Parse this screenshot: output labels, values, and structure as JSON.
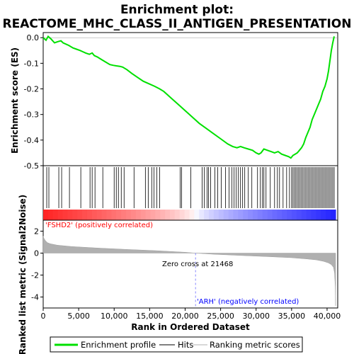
{
  "chart_data": [
    {
      "type": "line",
      "title": "Enrichment plot:",
      "subtitle": "REACTOME_MHC_CLASS_II_ANTIGEN_PRESENTATION",
      "ylabel": "Enrichment score (ES)",
      "xlim": [
        0,
        41500
      ],
      "ylim": [
        -0.5,
        0.02
      ],
      "yticks": [
        0.0,
        -0.1,
        -0.2,
        -0.3,
        -0.4,
        -0.5
      ],
      "yticklabels": [
        "0.0",
        "-0.1",
        "-0.2",
        "-0.3",
        "-0.4",
        "-0.5"
      ],
      "series": [
        {
          "name": "Enrichment profile",
          "color": "#00e000",
          "x": [
            0,
            400,
            700,
            1100,
            1600,
            2100,
            2500,
            2800,
            3200,
            3600,
            4200,
            4700,
            5200,
            5600,
            6000,
            6500,
            6900,
            7200,
            7600,
            8200,
            8800,
            9400,
            9900,
            10300,
            10800,
            11200,
            11800,
            12500,
            13300,
            14100,
            14900,
            15700,
            16400,
            17000,
            18000,
            19000,
            20000,
            21000,
            22000,
            23000,
            24000,
            25000,
            26000,
            26700,
            27300,
            27800,
            28300,
            28900,
            29500,
            30000,
            30400,
            30700,
            31100,
            31600,
            32100,
            32600,
            33100,
            33600,
            34100,
            34600,
            34900,
            35200,
            35500,
            35800,
            36100,
            36400,
            36700,
            37000,
            37300,
            37600,
            37900,
            38200,
            38500,
            38800,
            39100,
            39400,
            39700,
            40000,
            40200,
            40400,
            40600,
            40800,
            41000
          ],
          "y": [
            0.0,
            -0.01,
            0.005,
            -0.005,
            -0.02,
            -0.015,
            -0.012,
            -0.02,
            -0.025,
            -0.03,
            -0.04,
            -0.045,
            -0.05,
            -0.055,
            -0.06,
            -0.065,
            -0.06,
            -0.07,
            -0.075,
            -0.085,
            -0.095,
            -0.105,
            -0.108,
            -0.11,
            -0.112,
            -0.115,
            -0.125,
            -0.14,
            -0.155,
            -0.17,
            -0.18,
            -0.19,
            -0.2,
            -0.21,
            -0.235,
            -0.26,
            -0.285,
            -0.31,
            -0.335,
            -0.355,
            -0.375,
            -0.395,
            -0.415,
            -0.425,
            -0.43,
            -0.425,
            -0.43,
            -0.435,
            -0.44,
            -0.45,
            -0.455,
            -0.45,
            -0.435,
            -0.44,
            -0.445,
            -0.45,
            -0.445,
            -0.455,
            -0.46,
            -0.465,
            -0.47,
            -0.46,
            -0.455,
            -0.45,
            -0.44,
            -0.43,
            -0.415,
            -0.39,
            -0.37,
            -0.35,
            -0.32,
            -0.3,
            -0.28,
            -0.26,
            -0.24,
            -0.21,
            -0.19,
            -0.16,
            -0.13,
            -0.09,
            -0.05,
            -0.02,
            0.005
          ]
        }
      ]
    },
    {
      "type": "heatmap",
      "series": [
        {
          "name": "Hits",
          "color": "#000000",
          "x": [
            500,
            800,
            2200,
            2600,
            3700,
            5300,
            6600,
            6900,
            7300,
            8400,
            10000,
            10300,
            10600,
            11000,
            11400,
            12800,
            14400,
            14800,
            15300,
            15600,
            16000,
            16400,
            19300,
            19500,
            20800,
            22400,
            22700,
            23100,
            23300,
            23600,
            24200,
            24600,
            25100,
            25700,
            26200,
            26600,
            26900,
            27200,
            27500,
            27800,
            28100,
            28400,
            28900,
            29400,
            30200,
            30600,
            30900,
            31100,
            31400,
            32000,
            32600,
            33000,
            33300,
            33800,
            34300,
            34700,
            35000,
            35200,
            35400,
            35600,
            35800,
            36000,
            36200,
            36400,
            36600,
            36800,
            37000,
            37200,
            37400,
            37600,
            37800,
            38000,
            38200,
            38400,
            38600,
            38800,
            39000,
            39200,
            39400,
            39600,
            39800,
            40000,
            40200,
            40400,
            40600,
            40800,
            41000
          ]
        }
      ]
    },
    {
      "type": "area",
      "xlabel": "Rank in Ordered Dataset",
      "ylabel": "Ranked list metric (Signal2Noise)",
      "xlim": [
        0,
        41500
      ],
      "ylim": [
        -5,
        3
      ],
      "xticks": [
        0,
        5000,
        10000,
        15000,
        20000,
        25000,
        30000,
        35000,
        40000
      ],
      "xticklabels": [
        "0",
        "5,000",
        "10,000",
        "15,000",
        "20,000",
        "25,000",
        "30,000",
        "35,000",
        "40,000"
      ],
      "yticks": [
        2,
        0,
        -2,
        -4
      ],
      "yticklabels": [
        "2",
        "0",
        "-2",
        "-4"
      ],
      "series": [
        {
          "name": "Ranking metric scores",
          "color": "#b0b0b0",
          "x": [
            0,
            100,
            300,
            600,
            1000,
            2000,
            4000,
            8000,
            12000,
            16000,
            20000,
            21468,
            24000,
            28000,
            32000,
            35000,
            37000,
            38500,
            39500,
            40200,
            40600,
            40900,
            41050,
            41150,
            41200
          ],
          "y": [
            1.55,
            1.35,
            1.15,
            0.95,
            0.85,
            0.72,
            0.6,
            0.45,
            0.33,
            0.22,
            0.08,
            0.0,
            -0.1,
            -0.22,
            -0.33,
            -0.42,
            -0.52,
            -0.62,
            -0.75,
            -0.9,
            -1.05,
            -1.3,
            -1.8,
            -3.0,
            -4.8
          ]
        }
      ],
      "annotations": [
        "'FSHD2' (positively correlated)",
        "Zero cross at 21468",
        "'ARH' (negatively correlated)"
      ],
      "zero_cross": 21468
    }
  ],
  "legend": {
    "placement": "bottom",
    "items": [
      {
        "label": "Enrichment profile",
        "color": "#00e000"
      },
      {
        "label": "Hits",
        "color": "#000000"
      },
      {
        "label": "Ranking metric scores",
        "color": "#b0b0b0"
      }
    ]
  },
  "colors": {
    "positive": "#ff0000",
    "negative": "#0000ff",
    "frame": "#000000"
  }
}
